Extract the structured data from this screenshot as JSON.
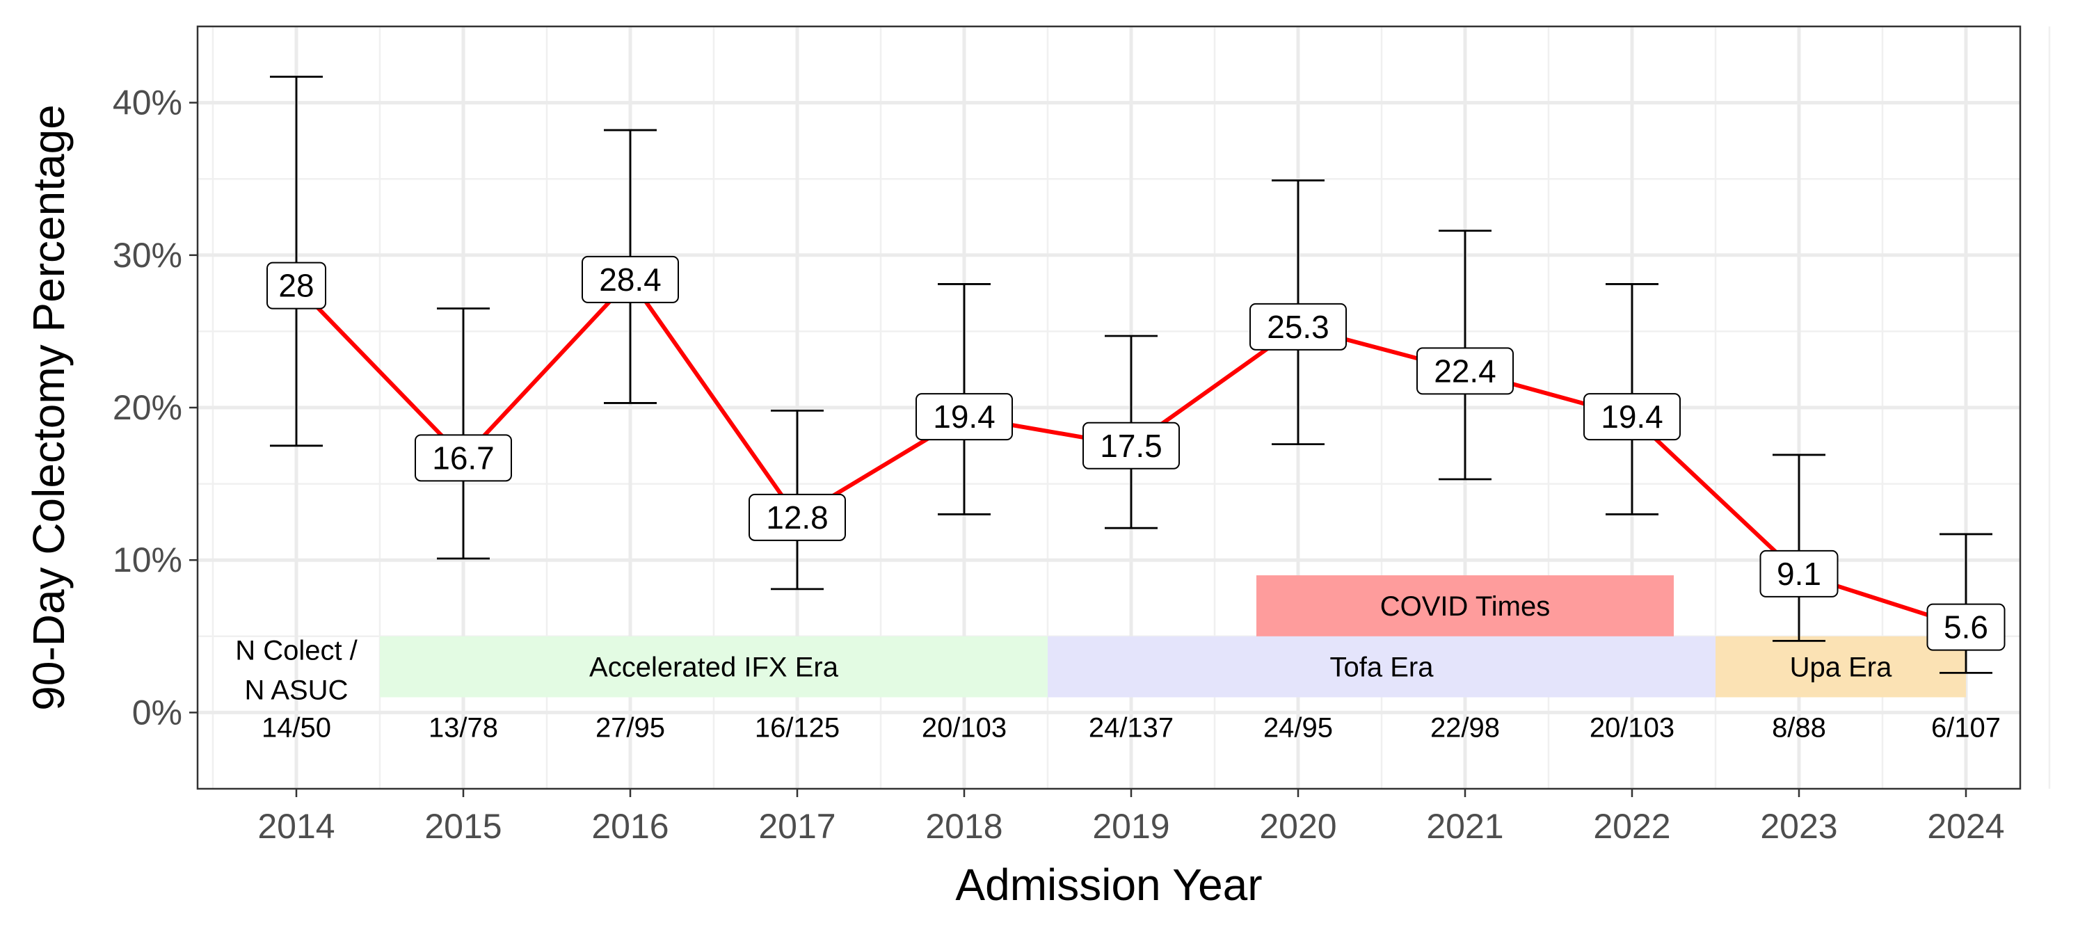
{
  "chart_data": {
    "type": "line",
    "xlabel": "Admission Year",
    "ylabel": "90-Day Colectomy Percentage",
    "ylim": [
      -5,
      45
    ],
    "y_ticks": [
      0,
      10,
      20,
      30,
      40
    ],
    "y_tick_labels": [
      "0%",
      "10%",
      "20%",
      "30%",
      "40%"
    ],
    "grid": true,
    "line_color": "#ff0000",
    "points": [
      {
        "year": "2014",
        "value": 28.0,
        "label": "28",
        "ci_low": 17.5,
        "ci_high": 41.7,
        "count": "14/50"
      },
      {
        "year": "2015",
        "value": 16.7,
        "label": "16.7",
        "ci_low": 10.1,
        "ci_high": 26.5,
        "count": "13/78"
      },
      {
        "year": "2016",
        "value": 28.4,
        "label": "28.4",
        "ci_low": 20.3,
        "ci_high": 38.2,
        "count": "27/95"
      },
      {
        "year": "2017",
        "value": 12.8,
        "label": "12.8",
        "ci_low": 8.1,
        "ci_high": 19.8,
        "count": "16/125"
      },
      {
        "year": "2018",
        "value": 19.4,
        "label": "19.4",
        "ci_low": 13.0,
        "ci_high": 28.1,
        "count": "20/103"
      },
      {
        "year": "2019",
        "value": 17.5,
        "label": "17.5",
        "ci_low": 12.1,
        "ci_high": 24.7,
        "count": "24/137"
      },
      {
        "year": "2020",
        "value": 25.3,
        "label": "25.3",
        "ci_low": 17.6,
        "ci_high": 34.9,
        "count": "24/95"
      },
      {
        "year": "2021",
        "value": 22.4,
        "label": "22.4",
        "ci_low": 15.3,
        "ci_high": 31.6,
        "count": "22/98"
      },
      {
        "year": "2022",
        "value": 19.4,
        "label": "19.4",
        "ci_low": 13.0,
        "ci_high": 28.1,
        "count": "20/103"
      },
      {
        "year": "2023",
        "value": 9.1,
        "label": "9.1",
        "ci_low": 4.7,
        "ci_high": 16.9,
        "count": "8/88"
      },
      {
        "year": "2024",
        "value": 5.6,
        "label": "5.6",
        "ci_low": 2.6,
        "ci_high": 11.7,
        "count": "6/107"
      }
    ],
    "count_header": [
      "N Colect /",
      "N ASUC"
    ],
    "bands": [
      {
        "label": "Accelerated IFX Era",
        "x_start": 2014.5,
        "x_end": 2018.5,
        "y_low": 1,
        "y_high": 5,
        "color": "#e3fbe3"
      },
      {
        "label": "Tofa Era",
        "x_start": 2018.5,
        "x_end": 2022.5,
        "y_low": 1,
        "y_high": 5,
        "color": "#e4e4fb"
      },
      {
        "label": "Upa Era",
        "x_start": 2022.5,
        "x_end": 2024.0,
        "y_low": 1,
        "y_high": 5,
        "color": "#fbe2b4"
      },
      {
        "label": "COVID Times",
        "x_start": 2019.75,
        "x_end": 2022.25,
        "y_low": 5,
        "y_high": 9,
        "color": "#fe9c9c"
      }
    ]
  }
}
